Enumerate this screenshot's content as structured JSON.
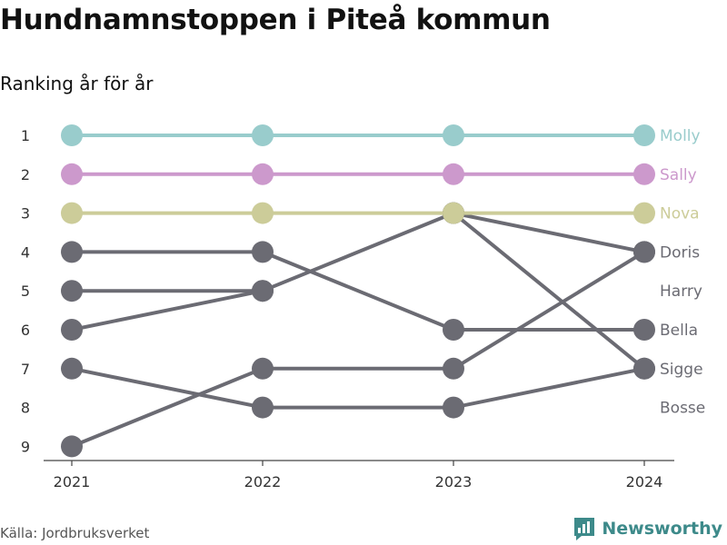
{
  "title": "Hundnamnstoppen i Piteå kommun",
  "subtitle": "Ranking år för år",
  "source": "Källa: Jordbruksverket",
  "brand": {
    "name": "Newsworthy",
    "color": "#3d8a8a"
  },
  "chart_data": {
    "type": "line",
    "title": "Hundnamnstoppen i Piteå kommun",
    "subtitle": "Ranking år för år",
    "x": [
      "2021",
      "2022",
      "2023",
      "2024"
    ],
    "y_ticks": [
      1,
      2,
      3,
      4,
      5,
      6,
      7,
      8,
      9
    ],
    "ylim": [
      9,
      1
    ],
    "grid": false,
    "series": [
      {
        "name": "Molly",
        "color": "#99cccc",
        "ranks": [
          1,
          1,
          1,
          1
        ]
      },
      {
        "name": "Sally",
        "color": "#cc99cc",
        "ranks": [
          2,
          2,
          2,
          2
        ]
      },
      {
        "name": "Nova",
        "color": "#cccc99",
        "ranks": [
          3,
          3,
          3,
          3
        ]
      },
      {
        "name": "Doris",
        "color": "#6b6b73",
        "ranks": [
          6,
          5,
          3,
          4
        ]
      },
      {
        "name": "Harry",
        "color": "#6b6b73",
        "ranks": [
          5,
          5,
          null,
          null
        ]
      },
      {
        "name": "Bella",
        "color": "#6b6b73",
        "ranks": [
          4,
          4,
          6,
          6
        ]
      },
      {
        "name": "Sigge",
        "color": "#6b6b73",
        "ranks": [
          null,
          null,
          3,
          7
        ]
      },
      {
        "name": "Bosse",
        "color": "#6b6b73",
        "ranks": [
          7,
          8,
          8,
          7
        ]
      },
      {
        "name": "",
        "color": "#6b6b73",
        "ranks": [
          9,
          7,
          7,
          4
        ]
      }
    ],
    "end_labels": [
      {
        "text": "Molly",
        "rank": 1,
        "color": "#99cccc"
      },
      {
        "text": "Sally",
        "rank": 2,
        "color": "#cc99cc"
      },
      {
        "text": "Nova",
        "rank": 3,
        "color": "#cccc99"
      },
      {
        "text": "Doris",
        "rank": 4,
        "color": "#6b6b73"
      },
      {
        "text": "Harry",
        "rank": 5,
        "color": "#6b6b73"
      },
      {
        "text": "Bella",
        "rank": 6,
        "color": "#6b6b73"
      },
      {
        "text": "Sigge",
        "rank": 7,
        "color": "#6b6b73"
      },
      {
        "text": "Bosse",
        "rank": 8,
        "color": "#6b6b73"
      }
    ]
  }
}
